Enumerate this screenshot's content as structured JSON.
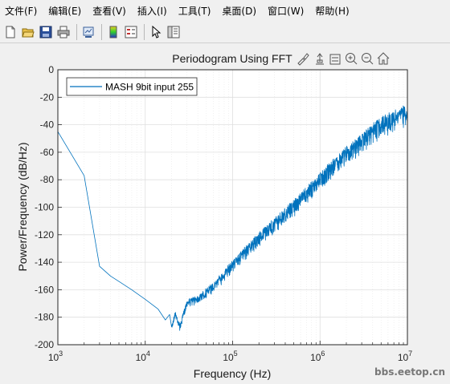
{
  "menu": {
    "items": [
      "文件(F)",
      "编辑(E)",
      "查看(V)",
      "插入(I)",
      "工具(T)",
      "桌面(D)",
      "窗口(W)",
      "帮助(H)"
    ]
  },
  "toolbar": {
    "icons": [
      "new-file-icon",
      "open-file-icon",
      "save-icon",
      "print-icon",
      "link-plot-icon",
      "colorbar-icon",
      "legend-icon",
      "pointer-icon",
      "property-editor-icon"
    ]
  },
  "axes_toolbar": {
    "icons": [
      "brush-icon",
      "data-tip-icon",
      "rotate-icon",
      "zoom-in-icon",
      "zoom-out-icon",
      "home-icon"
    ]
  },
  "watermark": "bbs.eetop.cn",
  "colors": {
    "line": "#0072bd",
    "grid": "#dfdfdf",
    "axis": "#262626"
  },
  "chart_data": {
    "type": "line",
    "title": "Periodogram Using FFT",
    "xlabel": "Frequency (Hz)",
    "ylabel": "Power/Frequency (dB/Hz)",
    "xscale": "log",
    "xlim": [
      1000,
      10000000
    ],
    "ylim": [
      -200,
      0
    ],
    "x_ticks": [
      {
        "base": "10",
        "exp": "3"
      },
      {
        "base": "10",
        "exp": "4"
      },
      {
        "base": "10",
        "exp": "5"
      },
      {
        "base": "10",
        "exp": "6"
      },
      {
        "base": "10",
        "exp": "7"
      }
    ],
    "y_ticks": [
      "0",
      "-20",
      "-40",
      "-60",
      "-80",
      "-100",
      "-120",
      "-140",
      "-160",
      "-180",
      "-200"
    ],
    "grid": true,
    "legend_position": "top-left",
    "series": [
      {
        "name": "MASH 9bit input 255",
        "color": "#0072bd",
        "points": [
          [
            1000,
            -45
          ],
          [
            2000,
            -77
          ],
          [
            3000,
            -143
          ],
          [
            4000,
            -150
          ],
          [
            5000,
            -154
          ],
          [
            7000,
            -160
          ],
          [
            10000,
            -167
          ],
          [
            14000,
            -174
          ],
          [
            17000,
            -182
          ],
          [
            19000,
            -178
          ],
          [
            20000,
            -187
          ],
          [
            22000,
            -176
          ],
          [
            25000,
            -186
          ],
          [
            30000,
            -168
          ],
          [
            40000,
            -165
          ],
          [
            60000,
            -156
          ],
          [
            100000,
            -140
          ],
          [
            200000,
            -120
          ],
          [
            500000,
            -97
          ],
          [
            1000000,
            -77
          ],
          [
            2000000,
            -58
          ],
          [
            5000000,
            -37
          ],
          [
            10000000,
            -28
          ]
        ],
        "noise_band_db": [
          [
            20000,
            4
          ],
          [
            100000,
            8
          ],
          [
            1000000,
            12
          ],
          [
            10000000,
            14
          ]
        ]
      }
    ]
  }
}
